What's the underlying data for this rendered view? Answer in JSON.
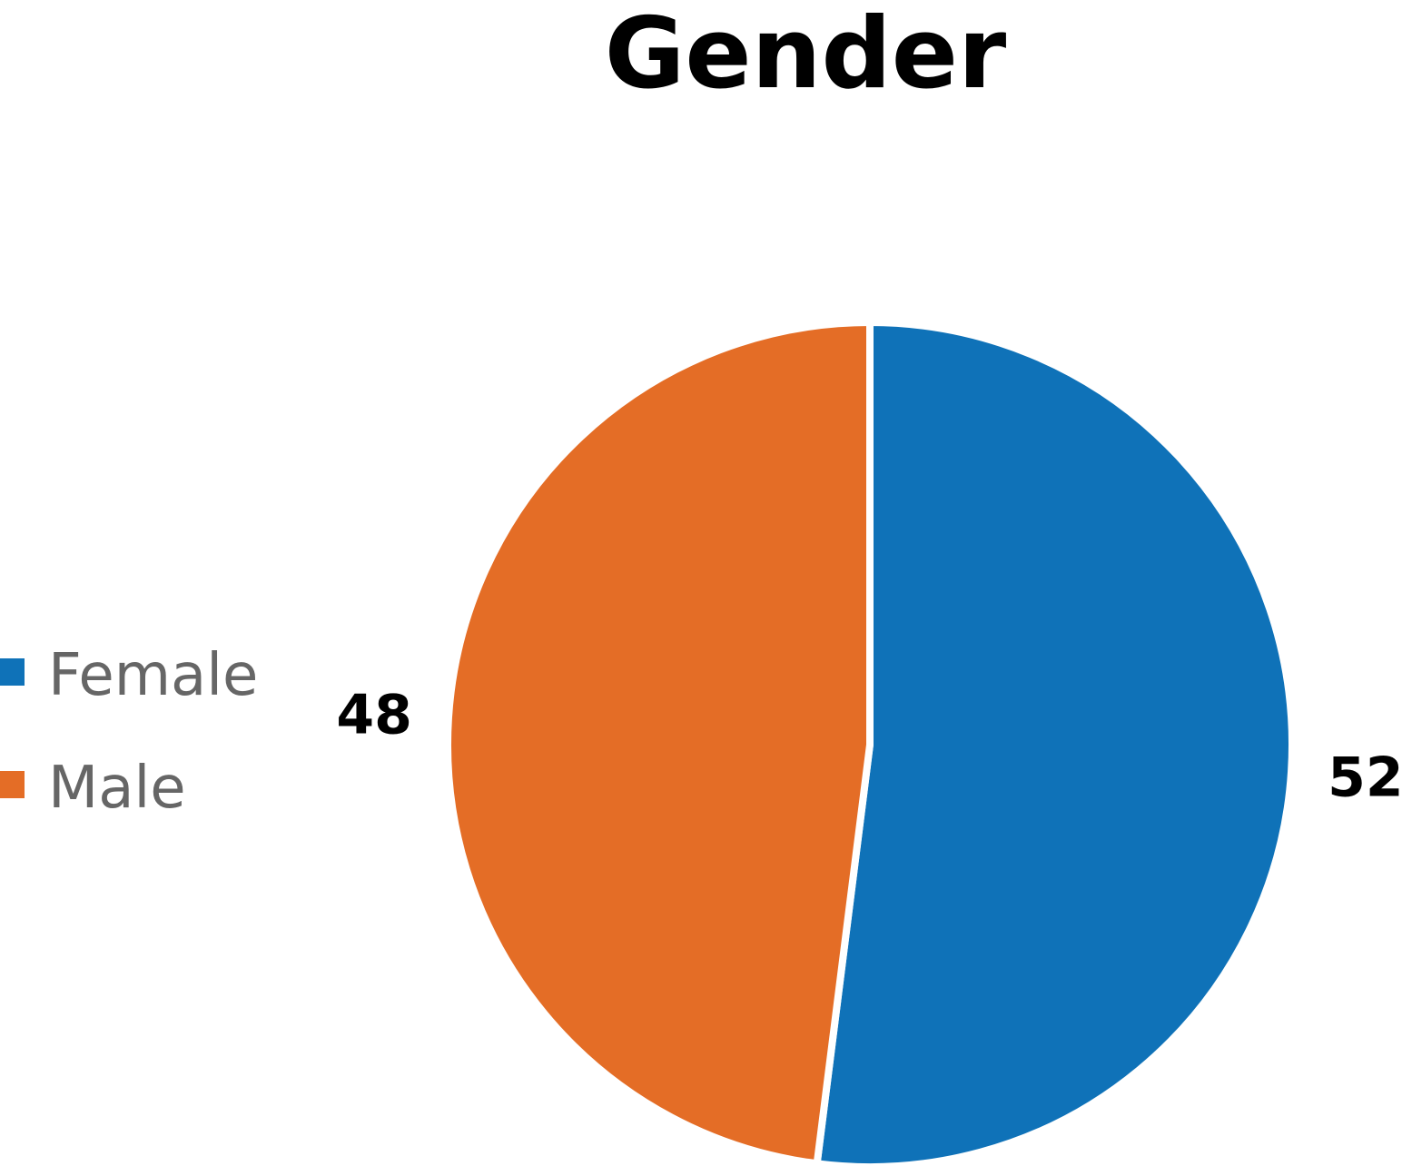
{
  "chart_data": {
    "type": "pie",
    "title": "Gender",
    "categories": [
      "Female",
      "Male"
    ],
    "values": [
      52,
      48
    ],
    "colors": [
      "#0f72b8",
      "#e46d26"
    ],
    "legend_position": "left",
    "start_angle_deg": 0,
    "direction": "clockwise"
  }
}
